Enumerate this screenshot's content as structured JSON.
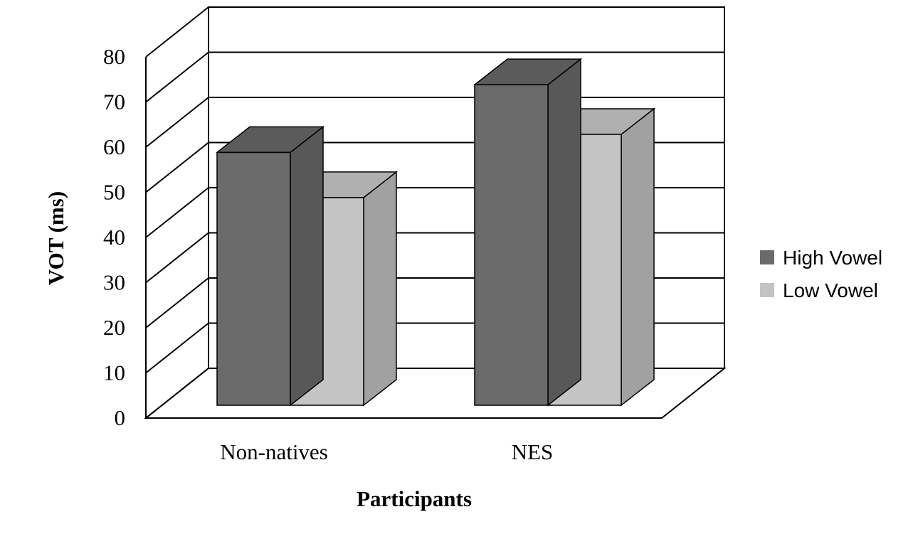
{
  "chart_data": {
    "type": "bar",
    "style": "3d-clustered",
    "categories": [
      "Non-natives",
      "NES"
    ],
    "series": [
      {
        "name": "High Vowel",
        "values": [
          56,
          71
        ],
        "color": "#6b6b6b"
      },
      {
        "name": "Low Vowel",
        "values": [
          46,
          60
        ],
        "color": "#c4c4c4"
      }
    ],
    "xlabel": "Participants",
    "ylabel": "VOT (ms)",
    "ylim": [
      0,
      80
    ],
    "yticks": [
      0,
      10,
      20,
      30,
      40,
      50,
      60,
      70,
      80
    ],
    "grid": true,
    "legend_position": "right"
  }
}
